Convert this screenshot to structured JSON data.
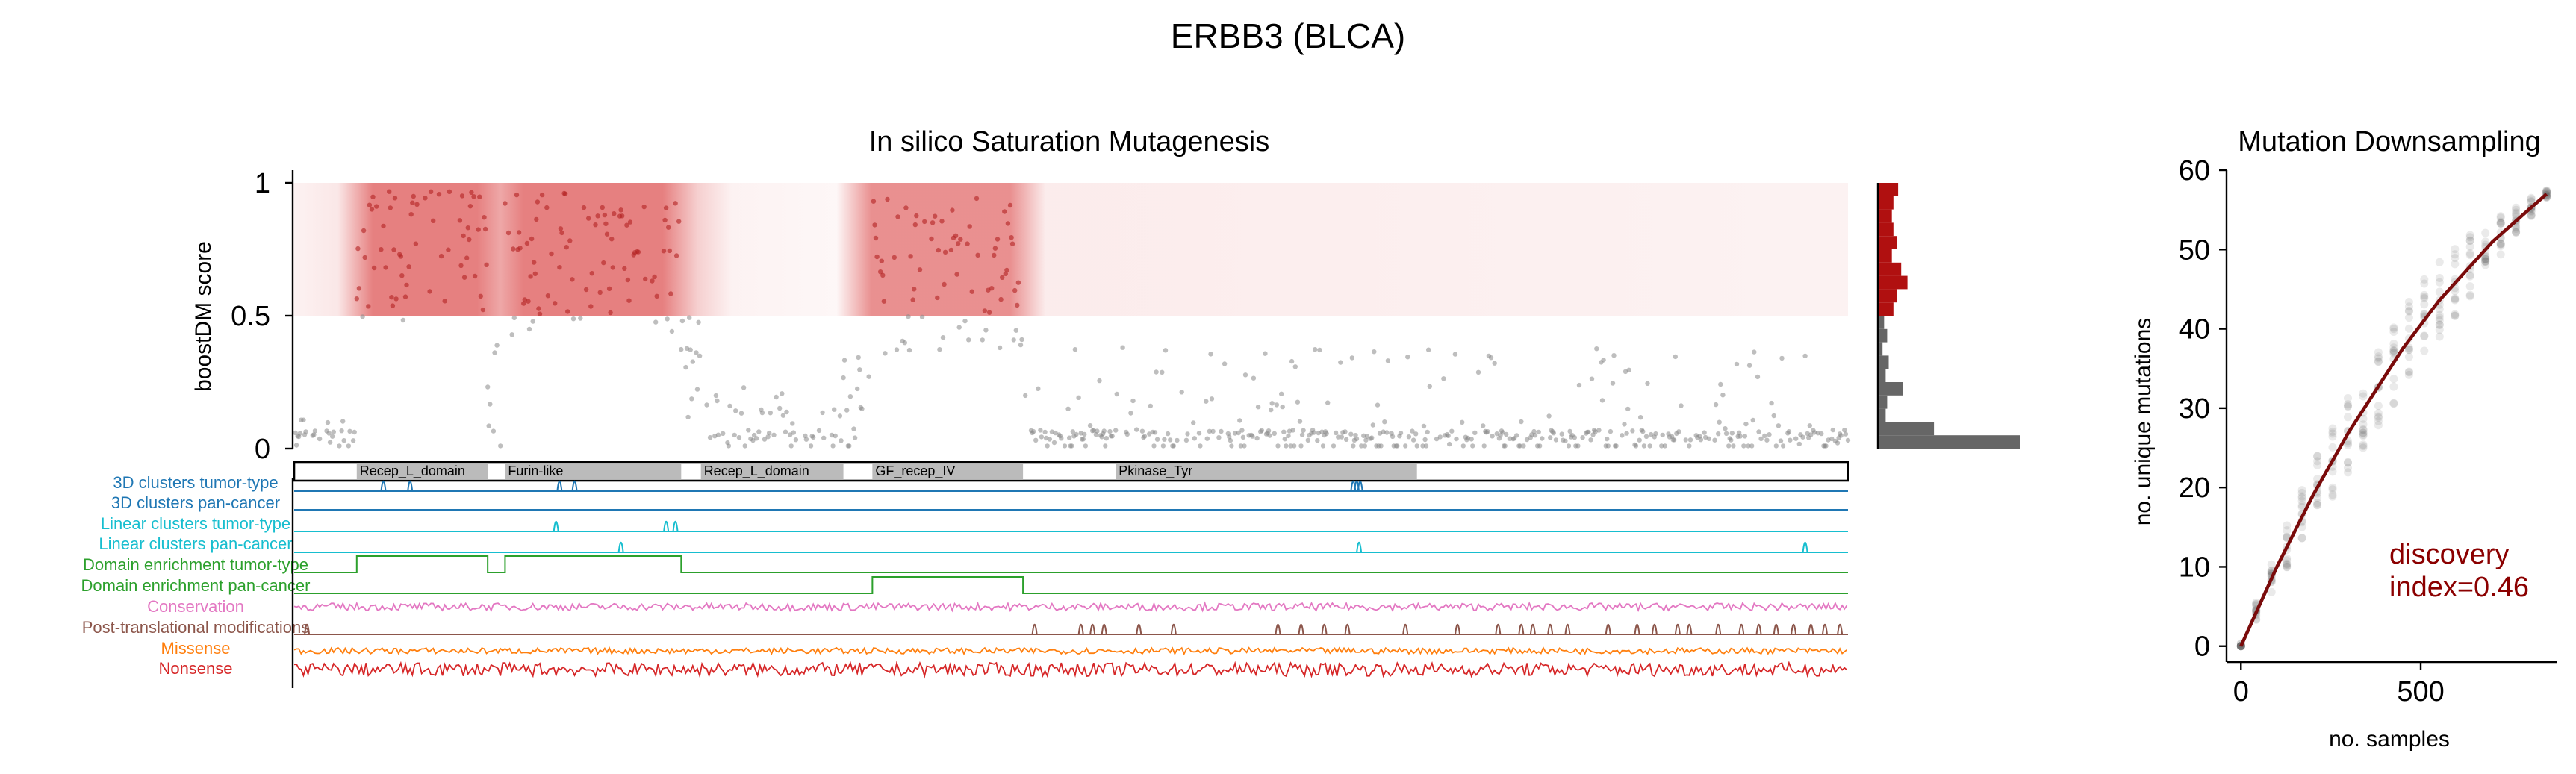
{
  "suptitle": "ERBB3 (BLCA)",
  "colors": {
    "driver": "#b22222",
    "passenger": "#888888",
    "hist_driver": "#b01010",
    "hist_passenger": "#666666",
    "discovery": "#8b0000",
    "fit_line": "#7a0b0b"
  },
  "chart_data": [
    {
      "type": "scatter",
      "title": "In silico Saturation Mutagenesis",
      "ylabel": "boostDM score",
      "ylim": [
        0,
        1
      ],
      "yticks": [
        0,
        0.5,
        1
      ],
      "xlim": [
        1,
        1342
      ],
      "threshold": 0.5,
      "protein_length": 1342,
      "domains": [
        {
          "name": "Recep_L_domain",
          "start": 55,
          "end": 168
        },
        {
          "name": "Furin-like",
          "start": 183,
          "end": 335
        },
        {
          "name": "Recep_L_domain",
          "start": 352,
          "end": 475
        },
        {
          "name": "GF_recep_IV",
          "start": 500,
          "end": 630
        },
        {
          "name": "Pkinase_Tyr",
          "start": 710,
          "end": 970
        }
      ],
      "score_profile_segments": [
        {
          "start": 1,
          "end": 55,
          "level": 0.04,
          "spread": 0.08
        },
        {
          "start": 55,
          "end": 168,
          "level": 0.72,
          "spread": 0.25
        },
        {
          "start": 168,
          "end": 183,
          "level": 0.2,
          "spread": 0.25
        },
        {
          "start": 183,
          "end": 335,
          "level": 0.7,
          "spread": 0.28
        },
        {
          "start": 335,
          "end": 352,
          "level": 0.3,
          "spread": 0.2
        },
        {
          "start": 352,
          "end": 475,
          "level": 0.08,
          "spread": 0.15
        },
        {
          "start": 475,
          "end": 500,
          "level": 0.2,
          "spread": 0.2
        },
        {
          "start": 500,
          "end": 630,
          "level": 0.65,
          "spread": 0.3
        },
        {
          "start": 630,
          "end": 1342,
          "level": 0.08,
          "spread": 0.3
        }
      ],
      "track_labels": [
        {
          "name": "3D clusters tumor-type",
          "color": "#1f77b4"
        },
        {
          "name": "3D clusters pan-cancer",
          "color": "#1f77b4"
        },
        {
          "name": "Linear clusters tumor-type",
          "color": "#17becf"
        },
        {
          "name": "Linear clusters pan-cancer",
          "color": "#17becf"
        },
        {
          "name": "Domain enrichment tumor-type",
          "color": "#2ca02c"
        },
        {
          "name": "Domain enrichment pan-cancer",
          "color": "#2ca02c"
        },
        {
          "name": "Conservation",
          "color": "#e377c2"
        },
        {
          "name": "Post-translational modifications",
          "color": "#8c564b"
        },
        {
          "name": "Missense",
          "color": "#ff7f0e"
        },
        {
          "name": "Nonsense",
          "color": "#d62728"
        }
      ],
      "tracks": {
        "clusters3d_tumor": [
          78,
          101,
          230,
          243,
          915,
          918,
          921
        ],
        "clusters3d_pan": [],
        "linear_tumor": [
          227,
          322,
          330
        ],
        "linear_pan": [
          283,
          920,
          1305
        ],
        "domain_tumor": [
          {
            "start": 55,
            "end": 168
          },
          {
            "start": 183,
            "end": 335
          }
        ],
        "domain_pan": [
          {
            "start": 500,
            "end": 630
          }
        ],
        "ptm": [
          12,
          640,
          680,
          690,
          700,
          730,
          760,
          850,
          870,
          890,
          910,
          960,
          1005,
          1040,
          1060,
          1070,
          1085,
          1100,
          1135,
          1160,
          1175,
          1195,
          1205,
          1230,
          1250,
          1265,
          1280,
          1295,
          1310,
          1322,
          1335
        ]
      },
      "histogram": {
        "bins": [
          0,
          0.05,
          0.1,
          0.15,
          0.2,
          0.25,
          0.3,
          0.35,
          0.4,
          0.45,
          0.5,
          0.55,
          0.6,
          0.65,
          0.7,
          0.75,
          0.8,
          0.85,
          0.9,
          0.95,
          1.0
        ],
        "counts": [
          180,
          70,
          8,
          10,
          30,
          8,
          12,
          4,
          10,
          6,
          18,
          22,
          36,
          28,
          16,
          22,
          18,
          16,
          18,
          24
        ]
      }
    },
    {
      "type": "scatter",
      "title": "Mutation Downsampling",
      "xlabel": "no. samples",
      "ylabel": "no. unique mutations",
      "xlim": [
        -40,
        880
      ],
      "ylim": [
        -2,
        60
      ],
      "xticks": [
        0,
        500
      ],
      "yticks": [
        0,
        10,
        20,
        30,
        40,
        50,
        60
      ],
      "max_samples": 850,
      "max_mutations": 57,
      "fit_curve": {
        "x": [
          0,
          50,
          100,
          150,
          200,
          250,
          300,
          350,
          400,
          450,
          500,
          550,
          600,
          650,
          700,
          750,
          800,
          850
        ],
        "y": [
          0,
          5,
          10,
          14.5,
          19,
          23,
          27,
          30.5,
          34,
          37.5,
          40.5,
          43.5,
          46,
          48.5,
          51,
          53,
          55,
          57
        ]
      },
      "annotation": "discovery\nindex=0.46",
      "annotation_lines": [
        "discovery",
        "index=0.46"
      ]
    }
  ]
}
